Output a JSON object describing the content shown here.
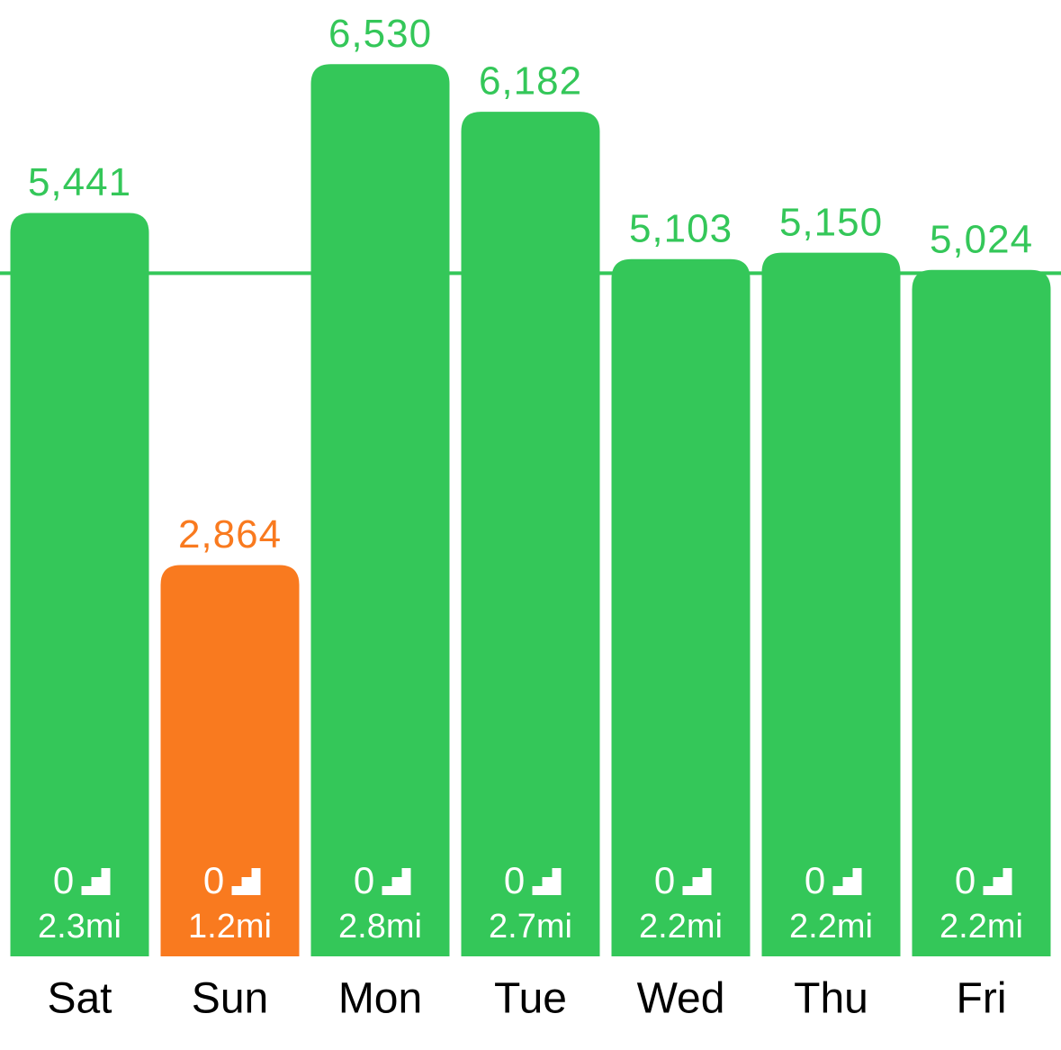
{
  "chart_data": {
    "type": "bar",
    "categories": [
      "Sat",
      "Sun",
      "Mon",
      "Tue",
      "Wed",
      "Thu",
      "Fri"
    ],
    "values": [
      5441,
      2864,
      6530,
      6182,
      5103,
      5150,
      5024
    ],
    "value_labels": [
      "5,441",
      "2,864",
      "6,530",
      "6,182",
      "5,103",
      "5,150",
      "5,024"
    ],
    "colors": [
      "#34c759",
      "#f97a1f",
      "#34c759",
      "#34c759",
      "#34c759",
      "#34c759",
      "#34c759"
    ],
    "goal_line": {
      "value": 5000,
      "color": "#34c759"
    },
    "floors": [
      0,
      0,
      0,
      0,
      0,
      0,
      0
    ],
    "distance": {
      "values": [
        2.3,
        1.2,
        2.8,
        2.7,
        2.2,
        2.2,
        2.2
      ],
      "value_labels": [
        "2.3mi",
        "1.2mi",
        "2.8mi",
        "2.7mi",
        "2.2mi",
        "2.2mi",
        "2.2mi"
      ]
    },
    "ylim": [
      0,
      7000
    ]
  }
}
